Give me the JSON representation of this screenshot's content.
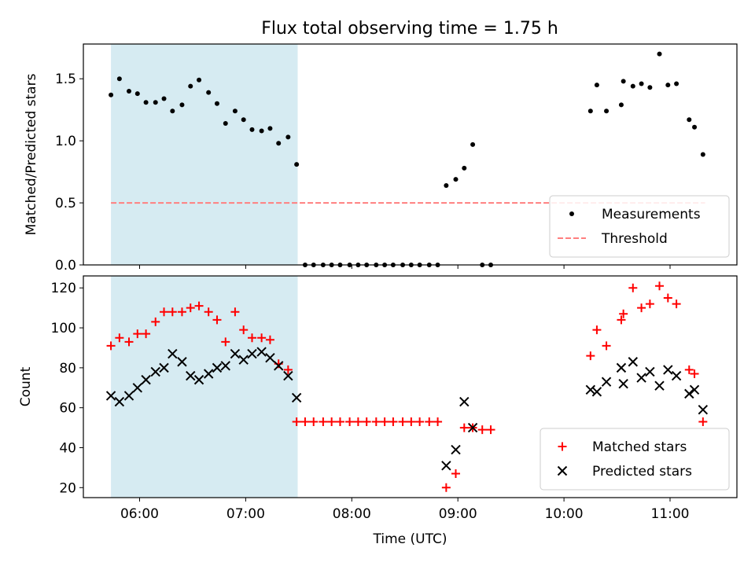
{
  "title": "Flux total observing time = 1.75 h",
  "chart_data": [
    {
      "type": "scatter",
      "ylabel": "Matched/Predicted stars",
      "xlabel": "",
      "ylim": [
        0,
        1.78
      ],
      "y_ticks": [
        "0.0",
        "0.5",
        "1.0",
        "1.5"
      ],
      "y_tick_values": [
        0,
        0.5,
        1.0,
        1.5
      ],
      "legend_position": "lower-right",
      "shaded_interval": {
        "start_hour": 5.73,
        "end_hour": 7.49,
        "color": "#add8e6"
      },
      "threshold": {
        "name": "Threshold",
        "value": 0.5,
        "from_hour": 5.73,
        "to_hour": 11.33,
        "color": "#ff7f7f"
      },
      "series": [
        {
          "name": "Measurements",
          "marker": "dot",
          "color": "#000000",
          "points": [
            [
              5.73,
              1.37
            ],
            [
              5.81,
              1.5
            ],
            [
              5.9,
              1.4
            ],
            [
              5.98,
              1.38
            ],
            [
              6.06,
              1.31
            ],
            [
              6.15,
              1.31
            ],
            [
              6.23,
              1.34
            ],
            [
              6.31,
              1.24
            ],
            [
              6.4,
              1.29
            ],
            [
              6.48,
              1.44
            ],
            [
              6.56,
              1.49
            ],
            [
              6.65,
              1.39
            ],
            [
              6.73,
              1.3
            ],
            [
              6.81,
              1.14
            ],
            [
              6.9,
              1.24
            ],
            [
              6.98,
              1.17
            ],
            [
              7.06,
              1.09
            ],
            [
              7.15,
              1.08
            ],
            [
              7.23,
              1.1
            ],
            [
              7.31,
              0.98
            ],
            [
              7.4,
              1.03
            ],
            [
              7.48,
              0.81
            ],
            [
              7.56,
              0
            ],
            [
              7.64,
              0
            ],
            [
              7.73,
              0
            ],
            [
              7.81,
              0
            ],
            [
              7.89,
              0
            ],
            [
              7.98,
              0
            ],
            [
              8.06,
              0
            ],
            [
              8.14,
              0
            ],
            [
              8.23,
              0
            ],
            [
              8.31,
              0
            ],
            [
              8.39,
              0
            ],
            [
              8.48,
              0
            ],
            [
              8.56,
              0
            ],
            [
              8.64,
              0
            ],
            [
              8.73,
              0
            ],
            [
              8.81,
              0
            ],
            [
              8.89,
              0.64
            ],
            [
              8.98,
              0.69
            ],
            [
              9.06,
              0.78
            ],
            [
              9.14,
              0.97
            ],
            [
              9.23,
              0
            ],
            [
              9.31,
              0
            ],
            [
              10.25,
              1.24
            ],
            [
              10.31,
              1.45
            ],
            [
              10.4,
              1.24
            ],
            [
              10.54,
              1.29
            ],
            [
              10.56,
              1.48
            ],
            [
              10.65,
              1.44
            ],
            [
              10.73,
              1.46
            ],
            [
              10.81,
              1.43
            ],
            [
              10.9,
              1.7
            ],
            [
              10.98,
              1.45
            ],
            [
              11.06,
              1.46
            ],
            [
              11.18,
              1.17
            ],
            [
              11.23,
              1.11
            ],
            [
              11.31,
              0.89
            ]
          ]
        }
      ]
    },
    {
      "type": "scatter",
      "ylabel": "Count",
      "xlabel": "Time (UTC)",
      "ylim": [
        15,
        126
      ],
      "y_ticks": [
        "20",
        "40",
        "60",
        "80",
        "100",
        "120"
      ],
      "y_tick_values": [
        20,
        40,
        60,
        80,
        100,
        120
      ],
      "x_ticks": [
        "06:00",
        "07:00",
        "08:00",
        "09:00",
        "10:00",
        "11:00"
      ],
      "x_tick_values": [
        6,
        7,
        8,
        9,
        10,
        11
      ],
      "xlim": [
        5.47,
        11.63
      ],
      "legend_position": "lower-right",
      "shaded_interval": {
        "start_hour": 5.73,
        "end_hour": 7.49,
        "color": "#add8e6"
      },
      "series": [
        {
          "name": "Matched stars",
          "marker": "plus",
          "color": "#ff0000",
          "points": [
            [
              5.73,
              91
            ],
            [
              5.81,
              95
            ],
            [
              5.9,
              93
            ],
            [
              5.98,
              97
            ],
            [
              6.06,
              97
            ],
            [
              6.15,
              103
            ],
            [
              6.23,
              108
            ],
            [
              6.31,
              108
            ],
            [
              6.4,
              108
            ],
            [
              6.48,
              110
            ],
            [
              6.56,
              111
            ],
            [
              6.65,
              108
            ],
            [
              6.73,
              104
            ],
            [
              6.81,
              93
            ],
            [
              6.9,
              108
            ],
            [
              6.98,
              99
            ],
            [
              7.06,
              95
            ],
            [
              7.15,
              95
            ],
            [
              7.23,
              94
            ],
            [
              7.31,
              82
            ],
            [
              7.4,
              79
            ],
            [
              7.48,
              53
            ],
            [
              7.56,
              53
            ],
            [
              7.64,
              53
            ],
            [
              7.73,
              53
            ],
            [
              7.81,
              53
            ],
            [
              7.89,
              53
            ],
            [
              7.98,
              53
            ],
            [
              8.06,
              53
            ],
            [
              8.14,
              53
            ],
            [
              8.23,
              53
            ],
            [
              8.31,
              53
            ],
            [
              8.39,
              53
            ],
            [
              8.48,
              53
            ],
            [
              8.56,
              53
            ],
            [
              8.64,
              53
            ],
            [
              8.73,
              53
            ],
            [
              8.81,
              53
            ],
            [
              8.89,
              20
            ],
            [
              8.98,
              27
            ],
            [
              9.06,
              50
            ],
            [
              9.14,
              50
            ],
            [
              9.23,
              49
            ],
            [
              9.31,
              49
            ],
            [
              10.25,
              86
            ],
            [
              10.31,
              99
            ],
            [
              10.4,
              91
            ],
            [
              10.54,
              104
            ],
            [
              10.56,
              107
            ],
            [
              10.65,
              120
            ],
            [
              10.73,
              110
            ],
            [
              10.81,
              112
            ],
            [
              10.9,
              121
            ],
            [
              10.98,
              115
            ],
            [
              11.06,
              112
            ],
            [
              11.18,
              79
            ],
            [
              11.23,
              77
            ],
            [
              11.31,
              53
            ]
          ]
        },
        {
          "name": "Predicted stars",
          "marker": "x",
          "color": "#000000",
          "points": [
            [
              5.73,
              66
            ],
            [
              5.81,
              63
            ],
            [
              5.9,
              66
            ],
            [
              5.98,
              70
            ],
            [
              6.06,
              74
            ],
            [
              6.15,
              78
            ],
            [
              6.23,
              80
            ],
            [
              6.31,
              87
            ],
            [
              6.4,
              83
            ],
            [
              6.48,
              76
            ],
            [
              6.56,
              74
            ],
            [
              6.65,
              77
            ],
            [
              6.73,
              80
            ],
            [
              6.81,
              81
            ],
            [
              6.9,
              87
            ],
            [
              6.98,
              84
            ],
            [
              7.06,
              87
            ],
            [
              7.15,
              88
            ],
            [
              7.23,
              85
            ],
            [
              7.31,
              81
            ],
            [
              7.4,
              76
            ],
            [
              7.48,
              65
            ],
            [
              8.89,
              31
            ],
            [
              8.98,
              39
            ],
            [
              9.06,
              63
            ],
            [
              9.14,
              50
            ],
            [
              10.25,
              69
            ],
            [
              10.31,
              68
            ],
            [
              10.4,
              73
            ],
            [
              10.54,
              80
            ],
            [
              10.56,
              72
            ],
            [
              10.65,
              83
            ],
            [
              10.73,
              75
            ],
            [
              10.81,
              78
            ],
            [
              10.9,
              71
            ],
            [
              10.98,
              79
            ],
            [
              11.06,
              76
            ],
            [
              11.18,
              67
            ],
            [
              11.23,
              69
            ],
            [
              11.31,
              59
            ]
          ]
        }
      ]
    }
  ]
}
